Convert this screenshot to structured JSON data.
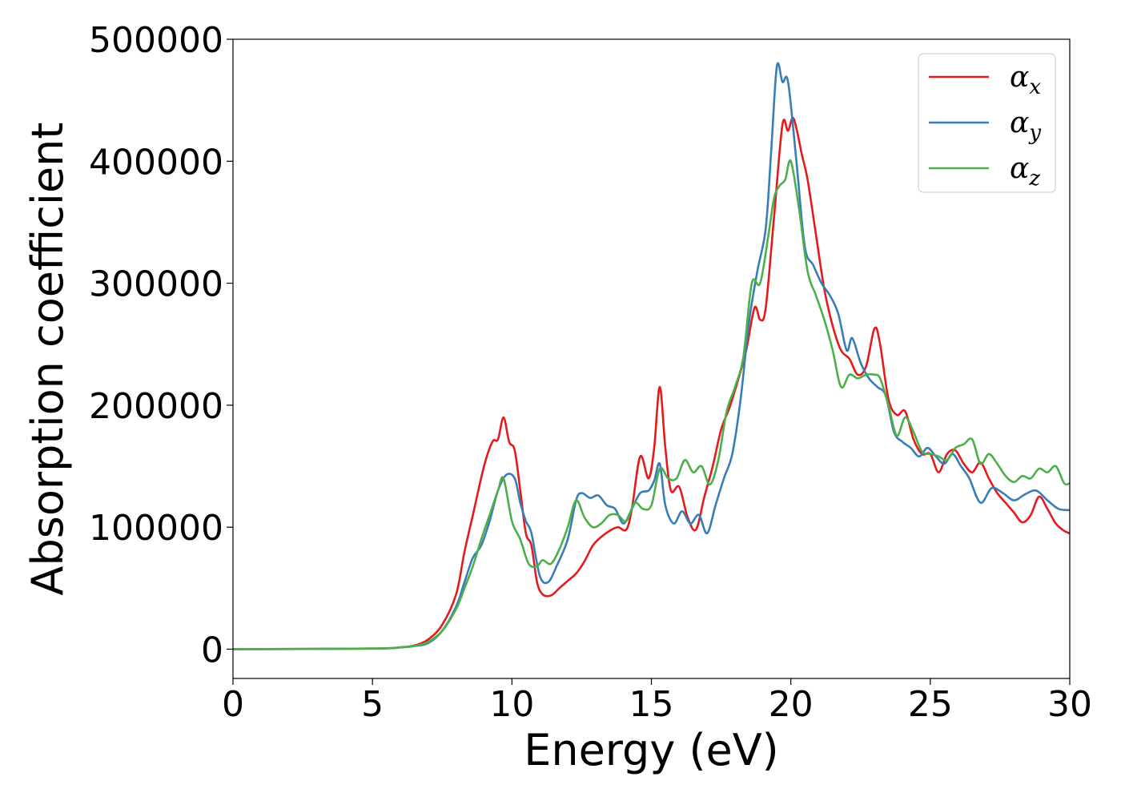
{
  "chart_data": {
    "type": "line",
    "xlabel": "Energy (eV)",
    "ylabel": "Absorption coefficient",
    "xlim": [
      0,
      30
    ],
    "ylim": [
      -24000,
      500000
    ],
    "xticks": [
      0,
      5,
      10,
      15,
      20,
      25,
      30
    ],
    "yticks": [
      0,
      100000,
      200000,
      300000,
      400000,
      500000
    ],
    "grid": false,
    "legend_position": "top-right",
    "series": [
      {
        "name": "α",
        "subscript": "x",
        "color": "#e41a1c",
        "points": [
          [
            0,
            0
          ],
          [
            5,
            500
          ],
          [
            6,
            1500
          ],
          [
            6.5,
            3000
          ],
          [
            7,
            8000
          ],
          [
            7.5,
            20000
          ],
          [
            8,
            45000
          ],
          [
            8.3,
            80000
          ],
          [
            8.6,
            110000
          ],
          [
            9,
            150000
          ],
          [
            9.3,
            170000
          ],
          [
            9.5,
            172000
          ],
          [
            9.7,
            190000
          ],
          [
            9.9,
            170000
          ],
          [
            10.1,
            163000
          ],
          [
            10.3,
            130000
          ],
          [
            10.5,
            95000
          ],
          [
            10.7,
            85000
          ],
          [
            10.9,
            55000
          ],
          [
            11.1,
            45000
          ],
          [
            11.4,
            44000
          ],
          [
            11.7,
            50000
          ],
          [
            12,
            56000
          ],
          [
            12.3,
            62000
          ],
          [
            12.6,
            72000
          ],
          [
            12.9,
            85000
          ],
          [
            13.2,
            92000
          ],
          [
            13.5,
            97000
          ],
          [
            13.8,
            100000
          ],
          [
            14.1,
            98000
          ],
          [
            14.3,
            115000
          ],
          [
            14.6,
            158000
          ],
          [
            14.9,
            140000
          ],
          [
            15.1,
            165000
          ],
          [
            15.3,
            215000
          ],
          [
            15.5,
            165000
          ],
          [
            15.7,
            130000
          ],
          [
            16,
            133000
          ],
          [
            16.3,
            108000
          ],
          [
            16.6,
            98000
          ],
          [
            16.9,
            125000
          ],
          [
            17.2,
            150000
          ],
          [
            17.5,
            180000
          ],
          [
            17.8,
            198000
          ],
          [
            18.1,
            220000
          ],
          [
            18.4,
            245000
          ],
          [
            18.7,
            280000
          ],
          [
            18.9,
            270000
          ],
          [
            19.1,
            280000
          ],
          [
            19.4,
            355000
          ],
          [
            19.7,
            430000
          ],
          [
            19.9,
            425000
          ],
          [
            20.1,
            435000
          ],
          [
            20.4,
            405000
          ],
          [
            20.6,
            385000
          ],
          [
            20.9,
            340000
          ],
          [
            21.2,
            295000
          ],
          [
            21.5,
            265000
          ],
          [
            21.8,
            245000
          ],
          [
            22.1,
            238000
          ],
          [
            22.4,
            225000
          ],
          [
            22.7,
            232000
          ],
          [
            23,
            263000
          ],
          [
            23.2,
            250000
          ],
          [
            23.5,
            205000
          ],
          [
            23.8,
            192000
          ],
          [
            24.1,
            195000
          ],
          [
            24.4,
            172000
          ],
          [
            24.7,
            160000
          ],
          [
            25,
            160000
          ],
          [
            25.3,
            145000
          ],
          [
            25.6,
            160000
          ],
          [
            25.9,
            163000
          ],
          [
            26.2,
            152000
          ],
          [
            26.5,
            145000
          ],
          [
            26.8,
            153000
          ],
          [
            27.1,
            140000
          ],
          [
            27.4,
            128000
          ],
          [
            27.7,
            120000
          ],
          [
            28,
            112000
          ],
          [
            28.3,
            104000
          ],
          [
            28.6,
            110000
          ],
          [
            28.9,
            125000
          ],
          [
            29.2,
            115000
          ],
          [
            29.5,
            103000
          ],
          [
            29.8,
            97000
          ],
          [
            30,
            95000
          ]
        ]
      },
      {
        "name": "α",
        "subscript": "y",
        "color": "#377eb8",
        "points": [
          [
            0,
            0
          ],
          [
            5,
            500
          ],
          [
            6,
            1500
          ],
          [
            6.5,
            2500
          ],
          [
            7,
            5000
          ],
          [
            7.5,
            15000
          ],
          [
            8,
            35000
          ],
          [
            8.3,
            55000
          ],
          [
            8.6,
            75000
          ],
          [
            8.9,
            85000
          ],
          [
            9.2,
            105000
          ],
          [
            9.5,
            130000
          ],
          [
            9.8,
            143000
          ],
          [
            10.1,
            140000
          ],
          [
            10.3,
            120000
          ],
          [
            10.5,
            105000
          ],
          [
            10.7,
            95000
          ],
          [
            11,
            60000
          ],
          [
            11.3,
            55000
          ],
          [
            11.6,
            68000
          ],
          [
            12,
            90000
          ],
          [
            12.3,
            122000
          ],
          [
            12.5,
            128000
          ],
          [
            12.8,
            124000
          ],
          [
            13.1,
            126000
          ],
          [
            13.4,
            118000
          ],
          [
            13.7,
            115000
          ],
          [
            14,
            103000
          ],
          [
            14.3,
            115000
          ],
          [
            14.6,
            128000
          ],
          [
            14.9,
            130000
          ],
          [
            15.1,
            138000
          ],
          [
            15.3,
            152000
          ],
          [
            15.5,
            118000
          ],
          [
            15.8,
            103000
          ],
          [
            16.1,
            113000
          ],
          [
            16.4,
            103000
          ],
          [
            16.7,
            110000
          ],
          [
            17,
            95000
          ],
          [
            17.3,
            118000
          ],
          [
            17.6,
            140000
          ],
          [
            17.9,
            160000
          ],
          [
            18.2,
            205000
          ],
          [
            18.5,
            268000
          ],
          [
            18.8,
            310000
          ],
          [
            19.1,
            345000
          ],
          [
            19.3,
            410000
          ],
          [
            19.5,
            478000
          ],
          [
            19.7,
            465000
          ],
          [
            19.9,
            465000
          ],
          [
            20.2,
            400000
          ],
          [
            20.5,
            330000
          ],
          [
            20.8,
            315000
          ],
          [
            21.1,
            300000
          ],
          [
            21.4,
            290000
          ],
          [
            21.7,
            275000
          ],
          [
            22,
            245000
          ],
          [
            22.2,
            255000
          ],
          [
            22.5,
            235000
          ],
          [
            22.8,
            222000
          ],
          [
            23.1,
            215000
          ],
          [
            23.4,
            208000
          ],
          [
            23.7,
            178000
          ],
          [
            24,
            170000
          ],
          [
            24.3,
            165000
          ],
          [
            24.6,
            158000
          ],
          [
            24.9,
            165000
          ],
          [
            25.2,
            158000
          ],
          [
            25.5,
            152000
          ],
          [
            25.8,
            160000
          ],
          [
            26.1,
            150000
          ],
          [
            26.4,
            140000
          ],
          [
            26.8,
            120000
          ],
          [
            27.2,
            132000
          ],
          [
            27.6,
            128000
          ],
          [
            28,
            122000
          ],
          [
            28.4,
            127000
          ],
          [
            28.8,
            130000
          ],
          [
            29.2,
            122000
          ],
          [
            29.6,
            115000
          ],
          [
            30,
            114000
          ]
        ]
      },
      {
        "name": "α",
        "subscript": "z",
        "color": "#4daf4a",
        "points": [
          [
            0,
            0
          ],
          [
            5,
            500
          ],
          [
            6,
            1500
          ],
          [
            6.5,
            2500
          ],
          [
            7,
            6000
          ],
          [
            7.5,
            15000
          ],
          [
            8,
            33000
          ],
          [
            8.3,
            50000
          ],
          [
            8.6,
            68000
          ],
          [
            8.9,
            90000
          ],
          [
            9.2,
            110000
          ],
          [
            9.5,
            130000
          ],
          [
            9.7,
            140000
          ],
          [
            10,
            105000
          ],
          [
            10.3,
            90000
          ],
          [
            10.6,
            70000
          ],
          [
            10.9,
            68000
          ],
          [
            11.1,
            73000
          ],
          [
            11.4,
            70000
          ],
          [
            11.7,
            82000
          ],
          [
            12,
            100000
          ],
          [
            12.3,
            122000
          ],
          [
            12.6,
            108000
          ],
          [
            12.9,
            100000
          ],
          [
            13.2,
            103000
          ],
          [
            13.5,
            110000
          ],
          [
            13.8,
            110000
          ],
          [
            14.1,
            105000
          ],
          [
            14.4,
            120000
          ],
          [
            14.7,
            115000
          ],
          [
            15,
            118000
          ],
          [
            15.3,
            148000
          ],
          [
            15.6,
            140000
          ],
          [
            15.9,
            140000
          ],
          [
            16.2,
            155000
          ],
          [
            16.5,
            145000
          ],
          [
            16.8,
            150000
          ],
          [
            17.1,
            135000
          ],
          [
            17.4,
            155000
          ],
          [
            17.7,
            195000
          ],
          [
            18,
            215000
          ],
          [
            18.3,
            240000
          ],
          [
            18.6,
            300000
          ],
          [
            18.9,
            300000
          ],
          [
            19.2,
            340000
          ],
          [
            19.4,
            370000
          ],
          [
            19.6,
            380000
          ],
          [
            19.8,
            385000
          ],
          [
            20,
            400000
          ],
          [
            20.3,
            360000
          ],
          [
            20.6,
            310000
          ],
          [
            20.9,
            290000
          ],
          [
            21.2,
            270000
          ],
          [
            21.5,
            245000
          ],
          [
            21.8,
            215000
          ],
          [
            22.1,
            225000
          ],
          [
            22.4,
            222000
          ],
          [
            22.7,
            225000
          ],
          [
            23,
            225000
          ],
          [
            23.2,
            222000
          ],
          [
            23.5,
            200000
          ],
          [
            23.8,
            175000
          ],
          [
            24.1,
            190000
          ],
          [
            24.4,
            178000
          ],
          [
            24.7,
            162000
          ],
          [
            25,
            160000
          ],
          [
            25.3,
            158000
          ],
          [
            25.6,
            155000
          ],
          [
            25.9,
            165000
          ],
          [
            26.2,
            168000
          ],
          [
            26.5,
            172000
          ],
          [
            26.8,
            152000
          ],
          [
            27.1,
            160000
          ],
          [
            27.4,
            152000
          ],
          [
            27.7,
            142000
          ],
          [
            28,
            137000
          ],
          [
            28.3,
            142000
          ],
          [
            28.6,
            140000
          ],
          [
            28.9,
            148000
          ],
          [
            29.2,
            145000
          ],
          [
            29.5,
            150000
          ],
          [
            29.8,
            136000
          ],
          [
            30,
            136000
          ]
        ]
      }
    ]
  }
}
